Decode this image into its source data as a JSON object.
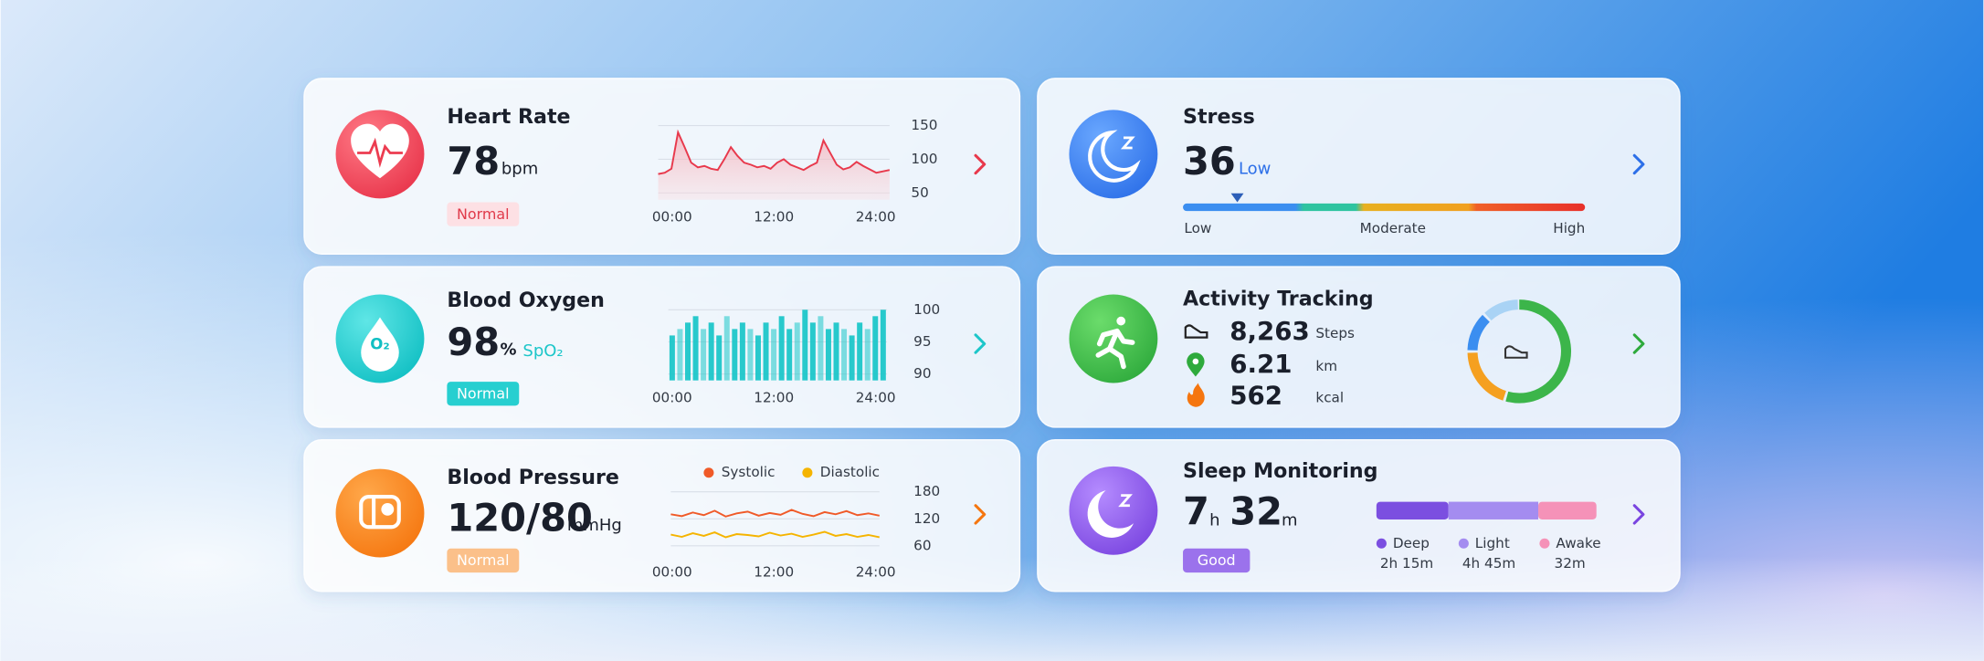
{
  "heart_rate": {
    "title": "Heart Rate",
    "value": "78",
    "unit": "bpm",
    "status": "Normal",
    "chart": {
      "type": "line",
      "color": "#e8394c",
      "values": [
        78,
        80,
        86,
        140,
        118,
        95,
        88,
        90,
        86,
        84,
        100,
        118,
        105,
        95,
        92,
        88,
        90,
        86,
        95,
        100,
        92,
        88,
        84,
        90,
        95,
        128,
        110,
        92,
        85,
        88,
        96,
        90,
        85,
        80,
        82,
        84
      ],
      "ylim": [
        40,
        160
      ],
      "yticks": [
        50,
        100,
        150
      ],
      "xticks": [
        "00:00",
        "12:00",
        "24:00"
      ]
    }
  },
  "blood_oxygen": {
    "title": "Blood Oxygen",
    "value": "98",
    "unit": "%",
    "label": "SpO₂",
    "icon_label": "O₂",
    "status": "Normal",
    "chart": {
      "type": "bar",
      "color": "#1cc6c9",
      "values": [
        96,
        97,
        98,
        99,
        97,
        98,
        96,
        99,
        97,
        98,
        97,
        96,
        98,
        97,
        99,
        97,
        98,
        100,
        98,
        99,
        97,
        98,
        97,
        96,
        98,
        97,
        99,
        100
      ],
      "ylim": [
        89,
        101
      ],
      "yticks": [
        90,
        95,
        100
      ],
      "xticks": [
        "00:00",
        "12:00",
        "24:00"
      ]
    }
  },
  "blood_pressure": {
    "title": "Blood Pressure",
    "value": "120/80",
    "unit": "mmHg",
    "status": "Normal",
    "chart": {
      "type": "line",
      "series": [
        {
          "name": "Systolic",
          "color": "#f05a28",
          "values": [
            130,
            126,
            134,
            128,
            138,
            125,
            132,
            136,
            127,
            133,
            129,
            140,
            131,
            126,
            135,
            130,
            137,
            128,
            132,
            127
          ]
        },
        {
          "name": "Diastolic",
          "color": "#f5b400",
          "values": [
            85,
            80,
            88,
            82,
            90,
            79,
            86,
            84,
            81,
            89,
            83,
            87,
            80,
            85,
            91,
            82,
            86,
            80,
            84,
            79
          ]
        }
      ],
      "ylim": [
        40,
        200
      ],
      "yticks": [
        60,
        120,
        180
      ],
      "xticks": [
        "00:00",
        "12:00",
        "24:00"
      ]
    }
  },
  "stress": {
    "title": "Stress",
    "value": "36",
    "level": "Low",
    "scale": [
      "Low",
      "Moderate",
      "High"
    ]
  },
  "activity": {
    "title": "Activity Tracking",
    "metrics": [
      {
        "value": "8,263",
        "unit": "Steps"
      },
      {
        "value": "6.21",
        "unit": "km"
      },
      {
        "value": "562",
        "unit": "kcal"
      }
    ]
  },
  "sleep": {
    "title": "Sleep Monitoring",
    "hours": "7",
    "hours_unit": "h",
    "minutes": "32",
    "minutes_unit": "m",
    "status": "Good",
    "stages": [
      {
        "name": "Deep",
        "duration": "2h 15m",
        "color": "#7b4fe0"
      },
      {
        "name": "Light",
        "duration": "4h 45m",
        "color": "#a48cf0"
      },
      {
        "name": "Awake",
        "duration": "32m",
        "color": "#f592b8"
      }
    ]
  }
}
